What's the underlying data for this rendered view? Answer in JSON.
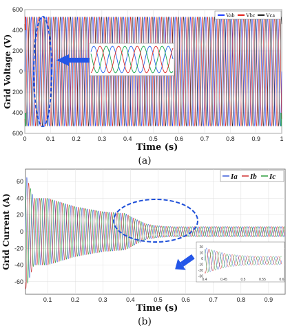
{
  "chart_data": [
    {
      "type": "line",
      "panel_label": "(a)",
      "xlabel": "Time (s)",
      "ylabel": "Grid Voltage (V)",
      "xlim": [
        0,
        1
      ],
      "ylim": [
        -600,
        600
      ],
      "x_ticks": [
        "0",
        "0.1",
        "0.2",
        "0.3",
        "0.4",
        "0.5",
        "0.6",
        "0.7",
        "0.8",
        "0.9",
        "1"
      ],
      "y_ticks": [
        "600",
        "400",
        "200",
        "0",
        "200",
        "400",
        "600"
      ],
      "grid": true,
      "legend_position": "top-right",
      "series": [
        {
          "name": "Vab",
          "color": "#1f3fff",
          "amplitude": 530,
          "phase_deg": 0
        },
        {
          "name": "Vbc",
          "color": "#e0201a",
          "amplitude": 530,
          "phase_deg": -120
        },
        {
          "name": "Vca",
          "color": "#222222",
          "amplitude": 530,
          "phase_deg": 120
        }
      ],
      "extra_colors": [
        "#16a34a"
      ],
      "frequency_hz": 50,
      "inset": {
        "type": "line",
        "description_colors": [
          "#2563eb",
          "#16a34a",
          "#dc2626"
        ]
      },
      "highlight_color": "#1d4ed8"
    },
    {
      "type": "line",
      "panel_label": "(b)",
      "xlabel": "Time (s)",
      "ylabel": "Grid Current (A)",
      "xlim": [
        0.02,
        0.96
      ],
      "ylim": [
        -75,
        75
      ],
      "x_ticks": [
        "0.1",
        "0.2",
        "0.3",
        "0.4",
        "0.5",
        "0.6",
        "0.7",
        "0.8",
        "0.9"
      ],
      "y_ticks": [
        "60",
        "40",
        "20",
        "0",
        "-20",
        "-40",
        "-60"
      ],
      "grid": true,
      "legend_position": "top-right",
      "series": [
        {
          "name": "Ia",
          "color": "#3a5bd9"
        },
        {
          "name": "Ib",
          "color": "#d03030"
        },
        {
          "name": "Ic",
          "color": "#2e9e3e"
        }
      ],
      "envelope": {
        "t": [
          0.02,
          0.05,
          0.1,
          0.2,
          0.3,
          0.38,
          0.42,
          0.46,
          0.5,
          0.55,
          0.96
        ],
        "amp": [
          70,
          40,
          40,
          30,
          24,
          22,
          15,
          9,
          7,
          6,
          6
        ]
      },
      "frequency_hz": 50,
      "inset": {
        "y_ticks": [
          "20",
          "10",
          "0",
          "-10",
          "-20",
          "-30"
        ],
        "x_ticks": [
          "0.4",
          "0.45",
          "0.5",
          "0.55",
          "0.6"
        ]
      },
      "highlight_color": "#1d4ed8"
    }
  ]
}
